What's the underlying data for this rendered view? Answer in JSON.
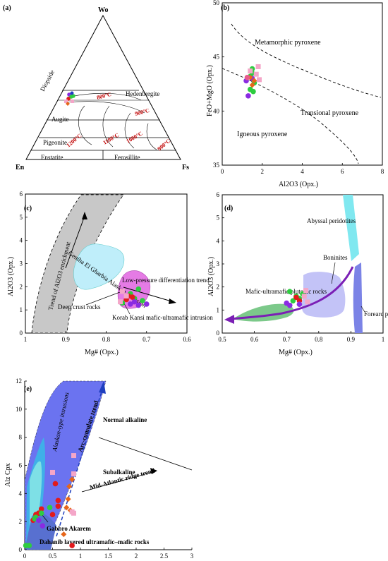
{
  "chart_data": [
    {
      "panel": "(a)",
      "type": "ternary",
      "apices": {
        "top": "Wo",
        "left": "En",
        "right": "Fs"
      },
      "fields": [
        "Diopside",
        "Hedenbergite",
        "Augite",
        "Pigeonite",
        "Enstatite",
        "Ferosillite"
      ],
      "isotherms": [
        "800°C",
        "900°C",
        "1000°C",
        "1100°C",
        "1200°C",
        "900°C"
      ],
      "colors": {
        "isotherm_text": "#c00000"
      }
    },
    {
      "panel": "(b)",
      "type": "scatter",
      "xlabel": "Al2O3 (Opx.)",
      "ylabel": "FeO+MgO (Opx.)",
      "xlim": [
        0,
        8
      ],
      "ylim": [
        35,
        50
      ],
      "xticks": [
        "0",
        "2",
        "4",
        "6",
        "8"
      ],
      "yticks": [
        "35",
        "40",
        "45",
        "50"
      ],
      "fields": [
        "Metamorphic pyroxene",
        "Transional pyroxene",
        "Igneous pyroxene"
      ],
      "series": [
        {
          "color": "#2ecc40",
          "marker": "circle",
          "points": [
            [
              1.5,
              43.9
            ],
            [
              1.4,
              43.2
            ],
            [
              1.6,
              42.6
            ],
            [
              1.4,
              42.0
            ],
            [
              1.55,
              41.8
            ],
            [
              1.5,
              43.5
            ]
          ]
        },
        {
          "color": "#8a2be2",
          "marker": "circle",
          "points": [
            [
              1.3,
              41.4
            ],
            [
              1.5,
              43.0
            ],
            [
              1.2,
              42.8
            ]
          ]
        },
        {
          "color": "#e6661a",
          "marker": "diamond",
          "points": [
            [
              1.6,
              42.8
            ],
            [
              1.4,
              43.1
            ],
            [
              1.5,
              42.4
            ]
          ]
        },
        {
          "color": "#e85c8a",
          "marker": "circle",
          "points": [
            [
              1.25,
              43.1
            ]
          ]
        },
        {
          "color": "#f4a6c8",
          "marker": "square",
          "points": [
            [
              1.8,
              44.1
            ],
            [
              1.7,
              43.4
            ],
            [
              1.4,
              43.7
            ],
            [
              1.85,
              42.9
            ]
          ]
        }
      ]
    },
    {
      "panel": "(c)",
      "type": "scatter",
      "xlabel": "Mg# (Opx.)",
      "ylabel": "Al2O3 (Opx.)",
      "xlim": [
        1.0,
        0.6
      ],
      "ylim": [
        0,
        6
      ],
      "xticks": [
        "1",
        "0.9",
        "0.8",
        "0.7",
        "0.6"
      ],
      "yticks": [
        "0",
        "1",
        "2",
        "3",
        "4",
        "5",
        "6"
      ],
      "annotations": [
        "Trend of Al2O3 enrichment",
        "Low-pressure differentiation trend",
        "Deep crust rocks",
        "Geniba El Gharbia Alaskan intrusion",
        "Korab Kansi mafic-ultramafic intrusion"
      ],
      "series": [
        {
          "color": "#2ecc40",
          "marker": "circle",
          "points": [
            [
              0.72,
              1.9
            ],
            [
              0.74,
              1.7
            ],
            [
              0.73,
              1.5
            ],
            [
              0.76,
              1.3
            ],
            [
              0.71,
              1.4
            ]
          ]
        },
        {
          "color": "#e31a1c",
          "marker": "circle",
          "points": [
            [
              0.745,
              1.6
            ],
            [
              0.75,
              1.45
            ],
            [
              0.735,
              1.55
            ]
          ]
        },
        {
          "color": "#8a2be2",
          "marker": "circle",
          "points": [
            [
              0.72,
              1.2
            ],
            [
              0.74,
              1.25
            ],
            [
              0.7,
              1.25
            ],
            [
              0.73,
              1.35
            ]
          ]
        },
        {
          "color": "#f4a6c8",
          "marker": "square",
          "points": [
            [
              0.76,
              1.8
            ],
            [
              0.75,
              1.6
            ],
            [
              0.765,
              1.35
            ]
          ]
        }
      ]
    },
    {
      "panel": "(d)",
      "type": "scatter",
      "xlabel": "Mg# (Opx.)",
      "ylabel": "Al2O3 (Opx.)",
      "xlim": [
        0.5,
        1.0
      ],
      "ylim": [
        0,
        6
      ],
      "xticks": [
        "0.5",
        "0.6",
        "0.7",
        "0.8",
        "0.9",
        "1"
      ],
      "yticks": [
        "0",
        "1",
        "2",
        "3",
        "4",
        "5",
        "6"
      ],
      "annotations": [
        "Abyssal peridotites",
        "Boninites",
        "Mafic-ultramafic plutonic rocks",
        "Forearc peridotites"
      ],
      "series": [
        {
          "color": "#2ecc40",
          "marker": "circle",
          "points": [
            [
              0.71,
              1.8
            ],
            [
              0.73,
              1.6
            ],
            [
              0.74,
              1.5
            ],
            [
              0.72,
              1.4
            ],
            [
              0.75,
              1.7
            ]
          ]
        },
        {
          "color": "#e31a1c",
          "marker": "circle",
          "points": [
            [
              0.73,
              1.55
            ],
            [
              0.74,
              1.4
            ]
          ]
        },
        {
          "color": "#8a2be2",
          "marker": "circle",
          "points": [
            [
              0.71,
              1.2
            ],
            [
              0.7,
              1.3
            ],
            [
              0.74,
              1.25
            ]
          ]
        },
        {
          "color": "#f4a6c8",
          "marker": "square",
          "points": [
            [
              0.76,
              1.85
            ],
            [
              0.755,
              1.6
            ],
            [
              0.765,
              1.35
            ]
          ]
        }
      ]
    },
    {
      "panel": "(e)",
      "type": "scatter",
      "xlabel": "",
      "ylabel": "Alz Cpx",
      "xlim": [
        0,
        3
      ],
      "ylim": [
        0,
        12
      ],
      "xticks": [
        "0",
        "0.5",
        "1",
        "1.5",
        "2",
        "2.5",
        "3"
      ],
      "yticks": [
        "0",
        "2",
        "4",
        "6",
        "8",
        "10",
        "12"
      ],
      "fields": [
        "Normal alkaline",
        "Subalkaline"
      ],
      "annotations": [
        "Alaskan-type intrusions",
        "Arc-cumulate trend",
        "Mid-Atlantic ridge trend",
        "Gabbro Akarem",
        "Dahanib layered ultramafic–mafic rocks"
      ],
      "series": [
        {
          "color": "#e31a1c",
          "marker": "circle",
          "points": [
            [
              0.15,
              2.1
            ],
            [
              0.2,
              2.5
            ],
            [
              0.25,
              2.6
            ],
            [
              0.3,
              2.9
            ],
            [
              0.55,
              4.7
            ],
            [
              0.6,
              3.5
            ],
            [
              0.6,
              3.1
            ],
            [
              0.5,
              2.5
            ],
            [
              0.85,
              0.3
            ]
          ]
        },
        {
          "color": "#2ecc40",
          "marker": "circle",
          "points": [
            [
              0.02,
              0.3
            ],
            [
              0.08,
              0.3
            ],
            [
              0.18,
              2.2
            ],
            [
              0.2,
              2.3
            ],
            [
              0.45,
              3.0
            ],
            [
              0.3,
              2.6
            ]
          ]
        },
        {
          "color": "#8a2be2",
          "marker": "circle",
          "points": [
            [
              0.32,
              1.7
            ],
            [
              0.25,
              2.1
            ]
          ]
        },
        {
          "color": "#e6661a",
          "marker": "diamond",
          "points": [
            [
              0.8,
              4.5
            ],
            [
              0.78,
              3.6
            ],
            [
              0.75,
              3.0
            ],
            [
              0.82,
              2.8
            ],
            [
              0.85,
              5.0
            ],
            [
              0.7,
              1.1
            ]
          ]
        },
        {
          "color": "#f4a6c8",
          "marker": "square",
          "points": [
            [
              0.5,
              5.5
            ],
            [
              0.88,
              6.7
            ],
            [
              0.88,
              5.4
            ],
            [
              0.88,
              2.6
            ],
            [
              0.85,
              2.7
            ]
          ]
        }
      ]
    }
  ]
}
